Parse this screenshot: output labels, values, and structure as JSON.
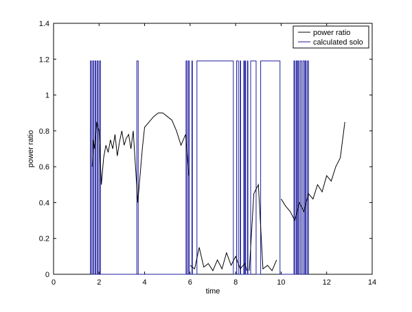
{
  "chart_data": {
    "type": "line",
    "title": "",
    "xlabel": "time",
    "ylabel": "power ratio",
    "xlim": [
      0,
      14
    ],
    "ylim": [
      0,
      1.4
    ],
    "xticks": [
      0,
      2,
      4,
      6,
      8,
      10,
      12,
      14
    ],
    "yticks": [
      0,
      0.2,
      0.4,
      0.6,
      0.8,
      1,
      1.2,
      1.4
    ],
    "xtick_labels": [
      "0",
      "2",
      "4",
      "6",
      "8",
      "10",
      "12",
      "14"
    ],
    "ytick_labels": [
      "0",
      "0.2",
      "0.4",
      "0.6",
      "0.8",
      "1",
      "1.2",
      "1.4"
    ],
    "grid": false,
    "legend_position": "top-right",
    "series": [
      {
        "name": "power ratio",
        "color": "#000000",
        "segments": [
          {
            "x": [
              1.7,
              1.75,
              1.8,
              1.9,
              2.0,
              2.1,
              2.2,
              2.3,
              2.4,
              2.5,
              2.6,
              2.7,
              2.8,
              2.9,
              3.0,
              3.1,
              3.2,
              3.3,
              3.4,
              3.5,
              3.6,
              3.7,
              3.8,
              3.9,
              4.0,
              4.2,
              4.4,
              4.6,
              4.8,
              5.0,
              5.2,
              5.4,
              5.6,
              5.8,
              5.95
            ],
            "y": [
              0.6,
              0.75,
              0.7,
              0.85,
              0.8,
              0.5,
              0.65,
              0.72,
              0.68,
              0.75,
              0.7,
              0.78,
              0.66,
              0.74,
              0.8,
              0.72,
              0.76,
              0.78,
              0.7,
              0.8,
              0.6,
              0.4,
              0.55,
              0.7,
              0.82,
              0.85,
              0.88,
              0.9,
              0.9,
              0.88,
              0.86,
              0.8,
              0.72,
              0.78,
              0.55
            ]
          },
          {
            "x": [
              6.0,
              6.2,
              6.4,
              6.6,
              6.8,
              7.0,
              7.2,
              7.4,
              7.6,
              7.8,
              8.0,
              8.2,
              8.4,
              8.5
            ],
            "y": [
              0.05,
              0.03,
              0.15,
              0.04,
              0.06,
              0.02,
              0.08,
              0.03,
              0.12,
              0.05,
              0.1,
              0.03,
              0.06,
              0.02
            ]
          },
          {
            "x": [
              8.6,
              8.8,
              9.0,
              9.2,
              9.4,
              9.6,
              9.8
            ],
            "y": [
              0.02,
              0.45,
              0.5,
              0.03,
              0.05,
              0.02,
              0.08
            ]
          },
          {
            "x": [
              10.0,
              10.2,
              10.4,
              10.6,
              10.8,
              11.0,
              11.2,
              11.4,
              11.6,
              11.8,
              12.0,
              12.2,
              12.4,
              12.6,
              12.8
            ],
            "y": [
              0.42,
              0.38,
              0.35,
              0.3,
              0.4,
              0.35,
              0.45,
              0.42,
              0.5,
              0.46,
              0.55,
              0.52,
              0.6,
              0.65,
              0.85
            ]
          }
        ]
      },
      {
        "name": "calculated solo",
        "color": "#1a1a9e",
        "high": 1.19,
        "low": 0,
        "intervals": [
          [
            1.62,
            1.66
          ],
          [
            1.72,
            1.76
          ],
          [
            1.82,
            1.86
          ],
          [
            1.92,
            1.96
          ],
          [
            2.02,
            2.06
          ],
          [
            3.66,
            3.72
          ],
          [
            5.82,
            5.86
          ],
          [
            5.92,
            5.96
          ],
          [
            6.08,
            6.1
          ],
          [
            6.3,
            7.9
          ],
          [
            8.04,
            8.12
          ],
          [
            8.2,
            8.22
          ],
          [
            8.36,
            8.38
          ],
          [
            8.42,
            8.44
          ],
          [
            8.52,
            8.54
          ],
          [
            8.66,
            8.9
          ],
          [
            9.1,
            9.95
          ],
          [
            10.56,
            10.6
          ],
          [
            10.66,
            10.7
          ],
          [
            10.74,
            10.78
          ],
          [
            10.84,
            10.9
          ],
          [
            10.96,
            11.02
          ],
          [
            11.06,
            11.1
          ],
          [
            11.16,
            11.2
          ]
        ]
      }
    ]
  }
}
